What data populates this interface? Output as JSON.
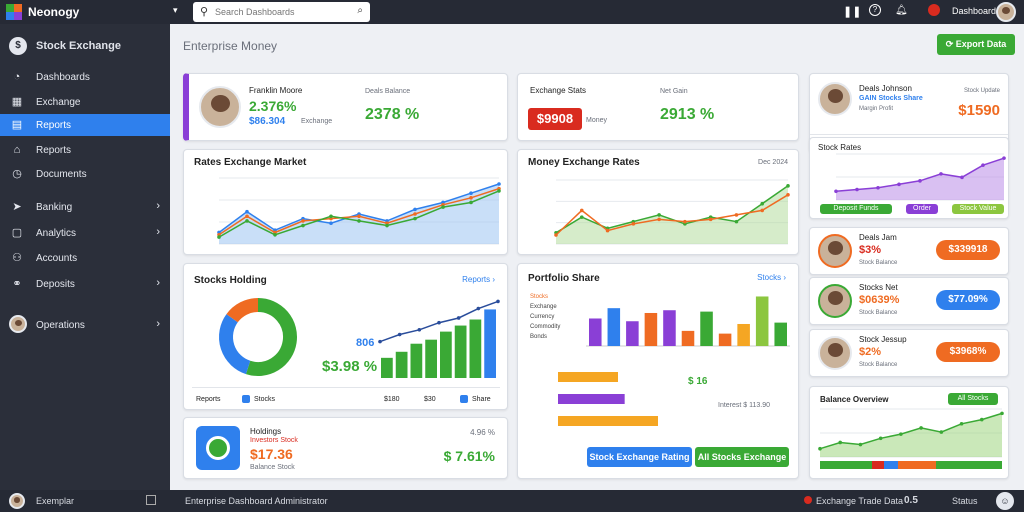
{
  "app": {
    "title": "Neonogy"
  },
  "search": {
    "placeholder": "Search Dashboards"
  },
  "topbar": {
    "user": "Dashboard"
  },
  "sidebar": {
    "header": "Stock Exchange",
    "items": [
      {
        "label": "Dashboards",
        "icon": "gauge-icon"
      },
      {
        "label": "Exchange",
        "icon": "grid-icon"
      },
      {
        "label": "Reports",
        "icon": "chart-icon"
      },
      {
        "label": "Reports",
        "icon": "home-icon"
      },
      {
        "label": "Documents",
        "icon": "clock-icon"
      },
      {
        "label": "Banking",
        "icon": "send-icon"
      },
      {
        "label": "Analytics",
        "icon": "box-icon"
      },
      {
        "label": "Accounts",
        "icon": "users-icon"
      },
      {
        "label": "Deposits",
        "icon": "link-icon"
      },
      {
        "label": "Operations",
        "icon": "user-icon"
      }
    ],
    "footer_user": "Exemplar"
  },
  "main": {
    "title": "Enterprise Money",
    "export_label": "Export Data"
  },
  "cards": {
    "profile": {
      "name": "Franklin Moore",
      "value": "2.376%",
      "subvalue": "$86.304",
      "sub_label": "Exchange",
      "right_label": "Deals Balance",
      "right_value": "2378 %"
    },
    "stats": {
      "label": "Exchange Stats",
      "badge": "$9908",
      "badge_sub": "Money",
      "right_label": "Net Gain",
      "right_value": "2913 %"
    },
    "line1": {
      "title": "Rates Exchange Market"
    },
    "line2": {
      "title": "Money Exchange Rates",
      "right_label": "Dec 2024"
    },
    "sales": {
      "title": "Stocks Holding",
      "link": "Reports ›",
      "center_label": "806",
      "value": "$3.98 %",
      "bottom_left": "Reports",
      "bottom_mid": "Stocks",
      "bottom_right1": "$180",
      "bottom_right2": "$30",
      "bottom_right3": "Share"
    },
    "bars": {
      "title": "Portfolio Share",
      "link": "Stocks ›",
      "legend": [
        "Stocks",
        "Exchange",
        "Currency",
        "Commodity",
        "Bonds"
      ],
      "label_right": "$ 16",
      "bottom_note": "Interest $ 113.90"
    },
    "wallet": {
      "title": "Holdings",
      "sub": "Investors Stock",
      "value": "$17.36",
      "note": "Balance Stock",
      "right_label": "4.96 %",
      "right_value": "$ 7.61%"
    },
    "right_top": {
      "name": "Deals Johnson",
      "tag": "GAIN Stocks Share",
      "sub": "Margin Profit",
      "value": "$1590",
      "sub2": "Stock Update"
    },
    "right_area": {
      "title": "Stock Rates",
      "btn1": "Deposit Funds",
      "btn2": "Order",
      "btn3": "Stock Value"
    },
    "right_r1": {
      "name": "Deals Jam",
      "value": "$3%",
      "sub": "Stock Balance",
      "badge": "$339918"
    },
    "right_r2": {
      "name": "Stocks Net",
      "value": "$0639%",
      "sub": "Stock Balance",
      "badge": "$77.09%"
    },
    "right_r3": {
      "name": "Stock Jessup",
      "value": "$2%",
      "sub": "Stock Balance",
      "badge": "$3968%"
    },
    "right_bottom": {
      "title": "Balance Overview",
      "btn": "All Stocks"
    }
  },
  "actions": {
    "search_btn": "Stock Exchange Rating",
    "green_btn": "All Stocks Exchange"
  },
  "footer": {
    "left": "Enterprise Dashboard Administrator",
    "r1": "Exchange Trade Data",
    "r2": "0.5",
    "r3": "Status"
  },
  "colors": {
    "accent": "#2f80ed",
    "green": "#3aa935",
    "orange": "#ef6b22",
    "purple": "#8a3fd6",
    "red": "#d92b1f",
    "yellow": "#f5a623"
  },
  "chart_data": [
    {
      "type": "area",
      "x": [
        1,
        2,
        3,
        4,
        5,
        6,
        7,
        8,
        9,
        10,
        11
      ],
      "series": [
        {
          "values": [
            10,
            28,
            12,
            22,
            18,
            26,
            20,
            30,
            36,
            44,
            52
          ]
        },
        {
          "values": [
            8,
            24,
            10,
            20,
            22,
            24,
            18,
            26,
            34,
            40,
            48
          ]
        },
        {
          "values": [
            6,
            20,
            8,
            16,
            24,
            20,
            16,
            22,
            32,
            36,
            46
          ]
        }
      ]
    },
    {
      "type": "area",
      "x": [
        1,
        2,
        3,
        4,
        5,
        6,
        7,
        8,
        9,
        10
      ],
      "series": [
        {
          "values": [
            10,
            24,
            14,
            20,
            26,
            18,
            24,
            20,
            36,
            52
          ]
        },
        {
          "values": [
            8,
            30,
            12,
            18,
            22,
            20,
            22,
            26,
            30,
            44
          ]
        }
      ]
    },
    {
      "type": "pie",
      "values": [
        55,
        30,
        15
      ]
    },
    {
      "type": "bar",
      "values": [
        20,
        26,
        34,
        38,
        46,
        52,
        58,
        68
      ]
    },
    {
      "type": "line",
      "values": [
        24,
        30,
        34,
        40,
        44,
        52,
        58
      ]
    },
    {
      "type": "bar",
      "values": [
        40,
        55,
        36,
        48,
        52,
        22,
        50,
        18,
        32,
        72,
        34
      ]
    },
    {
      "type": "bar",
      "orientation": "horizontal",
      "values": [
        18,
        20,
        30
      ]
    },
    {
      "type": "area",
      "values": [
        10,
        12,
        14,
        18,
        22,
        30,
        26,
        40,
        48
      ]
    },
    {
      "type": "area",
      "values": [
        8,
        14,
        12,
        18,
        22,
        28,
        24,
        32,
        36,
        42
      ]
    }
  ]
}
